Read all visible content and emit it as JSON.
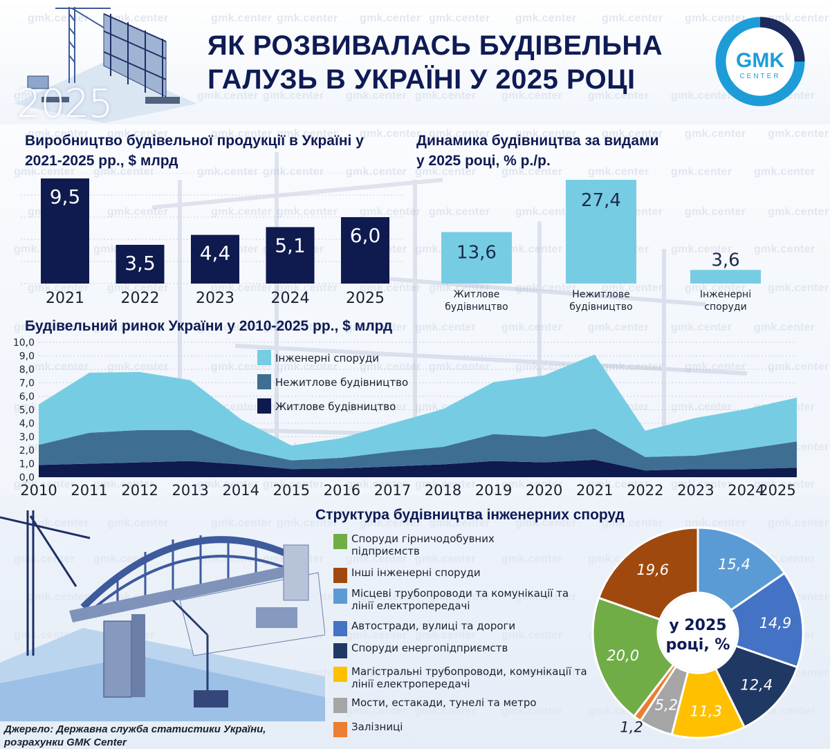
{
  "header": {
    "title_line1": "ЯК РОЗВИВАЛАСЬ БУДІВЕЛЬНА",
    "title_line2": "ГАЛУЗЬ В УКРАЇНІ У 2025 РОЦІ",
    "year_badge": "2025",
    "logo_main": "GMK",
    "logo_sub": "CENTER",
    "watermark": "gmk.center"
  },
  "colors": {
    "navy": "#0f1a4f",
    "light_blue": "#76cde3",
    "mid_blue": "#3e6f93",
    "logo_ring": "#1d9cd8",
    "title": "#0e1b54"
  },
  "icons": [
    "crane-illustration-icon",
    "bridge-illustration-icon",
    "gmk-logo-icon"
  ],
  "source": {
    "line1": "Джерело: Державна служба статистики України,",
    "line2": "розрахунки GMK Center"
  },
  "chart_data": [
    {
      "id": "production",
      "type": "bar",
      "title_line1": "Виробництво будівельної продукції в Україні у",
      "title_line2": "2021-2025 рр., $ млрд",
      "categories": [
        "2021",
        "2022",
        "2023",
        "2024",
        "2025"
      ],
      "values": [
        9.5,
        3.5,
        4.4,
        5.1,
        6.0
      ],
      "value_labels": [
        "9,5",
        "3,5",
        "4,4",
        "5,1",
        "6,0"
      ],
      "ylim": [
        0,
        10
      ],
      "color": "#0f1a4f",
      "grid": true
    },
    {
      "id": "dynamics",
      "type": "bar",
      "title_line1": "Динамика будівництва за видами",
      "title_line2": "у 2025 році, % р./р.",
      "categories": [
        [
          "Житлове",
          "будівництво"
        ],
        [
          "Нежитлове",
          "будівництво"
        ],
        [
          "Інженерні",
          "споруди"
        ]
      ],
      "values": [
        13.6,
        27.4,
        3.6
      ],
      "value_labels": [
        "13,6",
        "27,4",
        "3,6"
      ],
      "ylim": [
        0,
        30
      ],
      "color": "#76cde3",
      "grid": false
    },
    {
      "id": "market",
      "type": "area",
      "stacked": true,
      "title": "Будівельний ринок України у 2010-2025 рр., $ млрд",
      "x": [
        "2010",
        "2011",
        "2012",
        "2013",
        "2014",
        "2015",
        "2016",
        "2017",
        "2018",
        "2019",
        "2020",
        "2021",
        "2022",
        "2023",
        "2024",
        "2025"
      ],
      "y_ticks": [
        "0,0",
        "1,0",
        "2,0",
        "3,0",
        "4,0",
        "5,0",
        "6,0",
        "7,0",
        "8,0",
        "9,0",
        "10,0"
      ],
      "ylim": [
        0,
        10
      ],
      "grid": true,
      "legend_position": "top-left",
      "series": [
        {
          "name": "Житлове будівництво",
          "color": "#0f1a4f",
          "values": [
            0.9,
            1.0,
            1.1,
            1.2,
            0.95,
            0.6,
            0.65,
            0.8,
            0.95,
            1.2,
            1.1,
            1.3,
            0.5,
            0.6,
            0.6,
            0.7
          ]
        },
        {
          "name": "Нежитлове будівництво",
          "color": "#3e6f93",
          "values": [
            1.5,
            2.3,
            2.4,
            2.3,
            1.1,
            0.65,
            0.8,
            1.1,
            1.3,
            2.0,
            1.9,
            2.3,
            1.0,
            1.0,
            1.5,
            1.95
          ]
        },
        {
          "name": "Інженерні споруди",
          "color": "#76cde3",
          "values": [
            3.0,
            4.45,
            4.3,
            3.7,
            2.25,
            1.1,
            1.45,
            2.1,
            2.8,
            3.85,
            4.55,
            5.5,
            1.95,
            2.8,
            2.95,
            3.25
          ]
        }
      ],
      "legend_order": [
        "Інженерні споруди",
        "Нежитлове будівництво",
        "Житлове будівництво"
      ]
    },
    {
      "id": "engineering_structure",
      "type": "pie",
      "title": "Структура будівництва інженерних споруд",
      "center_label_line1": "у 2025",
      "center_label_line2": "році, %",
      "slices": [
        {
          "name": "Місцеві трубопроводи та комунікації та лінії електропередачі",
          "value": 15.4,
          "label": "15,4",
          "color": "#5b9bd5"
        },
        {
          "name": "Автостради, вулиці та дороги",
          "value": 14.9,
          "label": "14,9",
          "color": "#4472c4"
        },
        {
          "name": "Споруди енергопідприємств",
          "value": 12.4,
          "label": "12,4",
          "color": "#203864"
        },
        {
          "name": "Магістральні трубопроводи, комунікації та лінії електропередачі",
          "value": 11.3,
          "label": "11,3",
          "color": "#ffc000"
        },
        {
          "name": "Мости, естакади, тунелі та метро",
          "value": 5.2,
          "label": "5,2",
          "color": "#a5a5a5"
        },
        {
          "name": "Залізниці",
          "value": 1.2,
          "label": "1,2",
          "color": "#ed7d31"
        },
        {
          "name": "Споруди гірничодобувних підприємств",
          "value": 20.0,
          "label": "20,0",
          "color": "#70ad47"
        },
        {
          "name": "Інші інженерні споруди",
          "value": 19.6,
          "label": "19,6",
          "color": "#a0490e"
        }
      ],
      "legend": [
        {
          "line1": "Споруди гірничодобувних",
          "line2": "підприємств",
          "color": "#70ad47"
        },
        {
          "line1": "Інші інженерні споруди",
          "line2": "",
          "color": "#a0490e"
        },
        {
          "line1": "Місцеві трубопроводи та комунікації та",
          "line2": "лінії електропередачі",
          "color": "#5b9bd5"
        },
        {
          "line1": "Автостради, вулиці та дороги",
          "line2": "",
          "color": "#4472c4"
        },
        {
          "line1": "Споруди енергопідприємств",
          "line2": "",
          "color": "#203864"
        },
        {
          "line1": "Магістральні трубопроводи, комунікації та",
          "line2": "лінії електропередачі",
          "color": "#ffc000"
        },
        {
          "line1": "Мости, естакади, тунелі та метро",
          "line2": "",
          "color": "#a5a5a5"
        },
        {
          "line1": "Залізниці",
          "line2": "",
          "color": "#ed7d31"
        }
      ]
    }
  ]
}
